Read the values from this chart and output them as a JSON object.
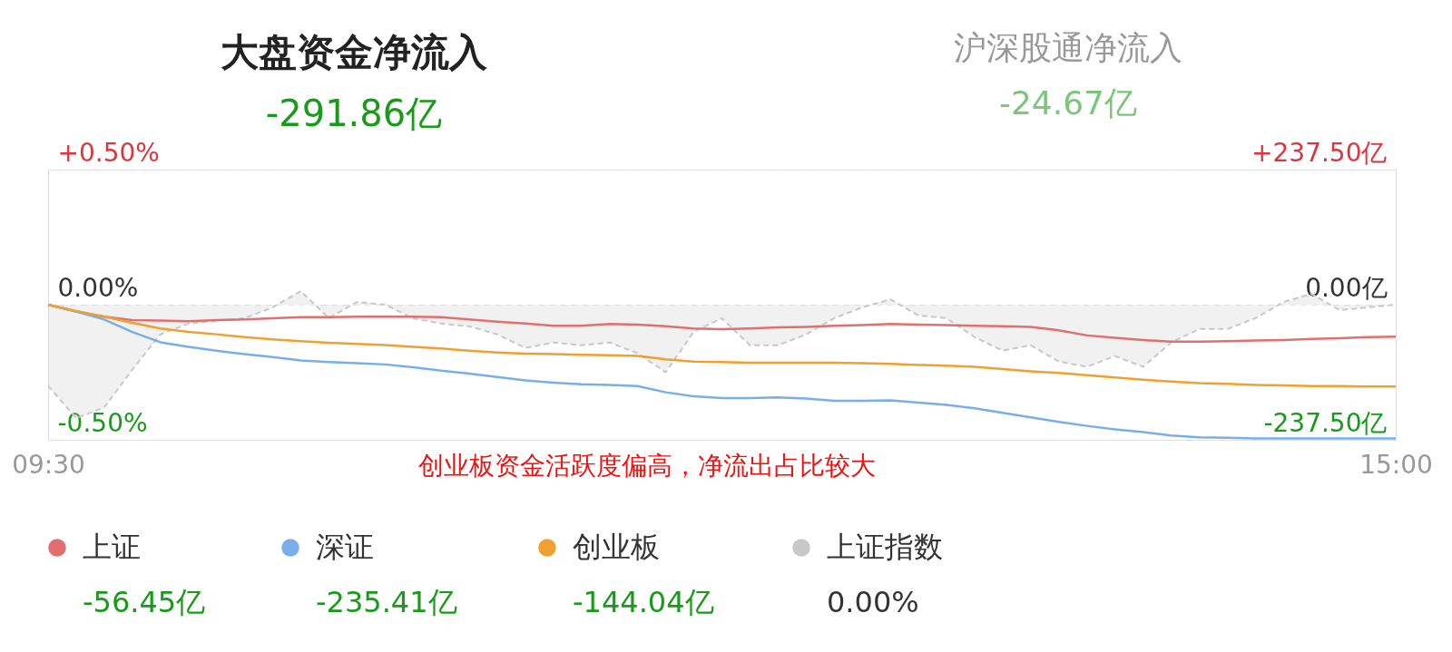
{
  "chart_data": {
    "type": "line",
    "title": "大盘资金净流入",
    "subtitle": "-291.86亿",
    "annotations": [
      "沪深股通净流入",
      "-24.67亿",
      "创业板资金活跃度偏高，净流出占比较大",
      "-56.45亿",
      "-235.41亿",
      "-144.04亿",
      "0.00%"
    ],
    "categories": [
      "09:30",
      null,
      null,
      null,
      null,
      null,
      null,
      null,
      null,
      null,
      null,
      null,
      null,
      null,
      null,
      null,
      null,
      null,
      null,
      null,
      null,
      null,
      null,
      null,
      null,
      null,
      null,
      null,
      null,
      null,
      null,
      null,
      null,
      null,
      null,
      null,
      null,
      null,
      null,
      null,
      null,
      null,
      null,
      null,
      null,
      null,
      null,
      null,
      "15:00"
    ],
    "ylim": [
      -0.5,
      0.5
    ],
    "yticks": [
      {
        "value": 0.5,
        "label": "+0.50%"
      },
      {
        "value": 0,
        "label": "0.00%"
      },
      {
        "value": -0.5,
        "label": "-0.50%"
      }
    ],
    "y2lim": [
      -237.5,
      237.5
    ],
    "y2ticks": [
      {
        "value": 237.5,
        "label": "+237.50亿"
      },
      {
        "value": 0,
        "label": "0.00亿"
      },
      {
        "value": -237.5,
        "label": "-237.50亿"
      }
    ],
    "grid": "y",
    "legend": "bottom",
    "series": [
      {
        "name": "上证",
        "color": "#e07070",
        "axis": "y2",
        "values": [
          0,
          -12,
          -21,
          -27,
          -28,
          -29,
          -27,
          -26,
          -24,
          -22,
          -22,
          -21,
          -21,
          -21,
          -22,
          -26,
          -30,
          -33,
          -37,
          -37,
          -34,
          -35,
          -38,
          -42,
          -43,
          -42,
          -40,
          -39,
          -37,
          -36,
          -34,
          -35,
          -36,
          -37,
          -38,
          -39,
          -45,
          -54,
          -58,
          -62,
          -65,
          -65,
          -64,
          -63,
          -62,
          -60,
          -59,
          -57,
          -56
        ]
      },
      {
        "name": "深证",
        "color": "#7aaee8",
        "axis": "y2",
        "values": [
          0,
          -12,
          -26,
          -48,
          -66,
          -74,
          -81,
          -87,
          -92,
          -98,
          -101,
          -103,
          -105,
          -110,
          -116,
          -121,
          -127,
          -133,
          -137,
          -140,
          -141,
          -143,
          -154,
          -161,
          -164,
          -164,
          -163,
          -165,
          -169,
          -169,
          -168,
          -172,
          -176,
          -182,
          -190,
          -198,
          -206,
          -213,
          -219,
          -224,
          -230,
          -233,
          -234,
          -235,
          -235,
          -235,
          -235,
          -235,
          -235
        ]
      },
      {
        "name": "创业板",
        "color": "#f0a030",
        "axis": "y2",
        "values": [
          0,
          -11,
          -21,
          -32,
          -42,
          -48,
          -52,
          -57,
          -61,
          -64,
          -67,
          -69,
          -71,
          -74,
          -77,
          -81,
          -84,
          -86,
          -87,
          -88,
          -89,
          -90,
          -96,
          -100,
          -101,
          -102,
          -102,
          -102,
          -102,
          -103,
          -104,
          -106,
          -107,
          -109,
          -113,
          -117,
          -120,
          -124,
          -128,
          -132,
          -135,
          -138,
          -139,
          -141,
          -142,
          -143,
          -143,
          -144,
          -144
        ]
      },
      {
        "name": "上证指数",
        "color": "#c8c8c8",
        "type": "area",
        "axis": "y",
        "line_style": "dashed",
        "values": [
          -0.3,
          -0.42,
          -0.38,
          -0.24,
          -0.11,
          -0.07,
          -0.06,
          -0.05,
          -0.01,
          0.05,
          -0.05,
          0.01,
          0.0,
          -0.05,
          -0.07,
          -0.08,
          -0.11,
          -0.16,
          -0.14,
          -0.15,
          -0.14,
          -0.18,
          -0.25,
          -0.1,
          -0.05,
          -0.15,
          -0.15,
          -0.11,
          -0.05,
          -0.01,
          0.02,
          -0.04,
          -0.05,
          -0.12,
          -0.17,
          -0.15,
          -0.21,
          -0.23,
          -0.19,
          -0.23,
          -0.14,
          -0.09,
          -0.09,
          -0.05,
          0.01,
          0.04,
          -0.02,
          -0.01,
          0.0
        ]
      }
    ]
  }
}
